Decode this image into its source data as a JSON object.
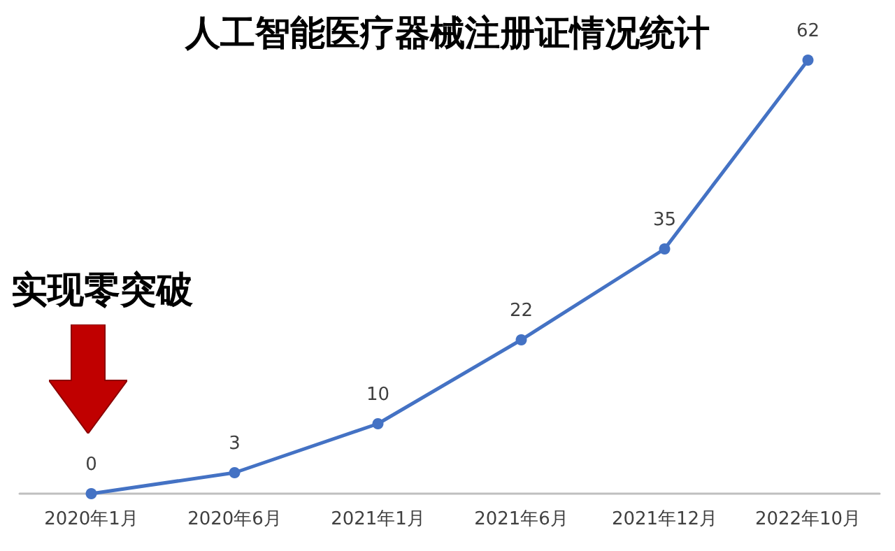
{
  "chart_data": {
    "type": "line",
    "title": "人工智能医疗器械注册证情况统计",
    "categories": [
      "2020年1月",
      "2020年6月",
      "2021年1月",
      "2021年6月",
      "2021年12月",
      "2022年10月"
    ],
    "series": [
      {
        "color": "#4472c4",
        "values": [
          0,
          3,
          10,
          22,
          35,
          62
        ]
      }
    ],
    "data_labels": true,
    "marker": "circle",
    "line_style": "solid",
    "grid": false,
    "tick_labels": "x",
    "annotations": [
      "实现零突破"
    ]
  }
}
